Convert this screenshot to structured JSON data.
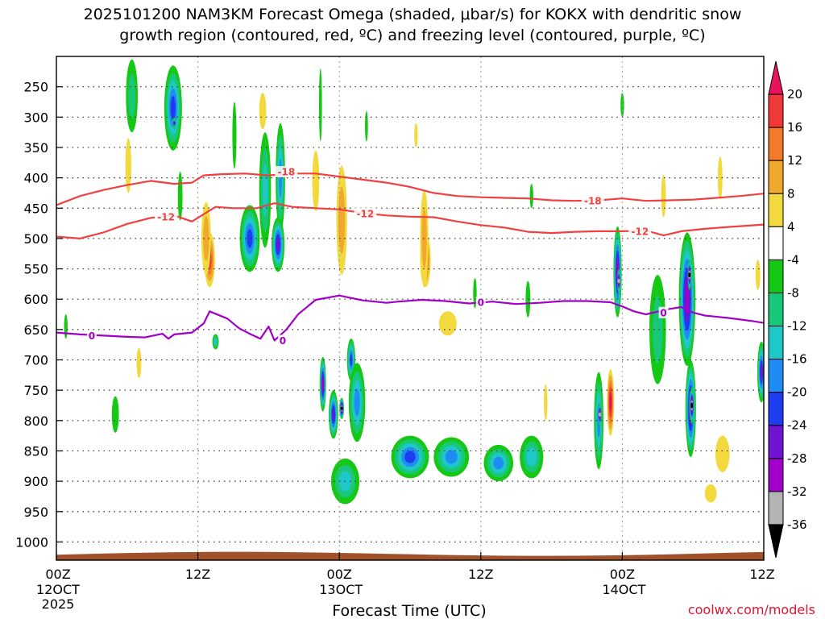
{
  "chart_data": {
    "type": "heatmap",
    "title_line1": "2025101200 NAM3KM Forecast Omega (shaded, μbar/s) for KOKX with dendritic snow",
    "title_line2": "growth region (contoured, red, ºC) and freezing level (contoured, purple, ºC)",
    "xlabel": "Forecast Time (UTC)",
    "watermark": "coolwx.com/models",
    "xlim": [
      0,
      60
    ],
    "x_ticks": [
      {
        "hour": 0,
        "label": "00Z",
        "date": "12OCT",
        "year": "2025"
      },
      {
        "hour": 12,
        "label": "12Z",
        "date": "",
        "year": ""
      },
      {
        "hour": 24,
        "label": "00Z",
        "date": "13OCT",
        "year": ""
      },
      {
        "hour": 36,
        "label": "12Z",
        "date": "",
        "year": ""
      },
      {
        "hour": 48,
        "label": "00Z",
        "date": "14OCT",
        "year": ""
      },
      {
        "hour": 60,
        "label": "12Z",
        "date": "",
        "year": ""
      }
    ],
    "y_ticks": [
      "250",
      "300",
      "350",
      "400",
      "450",
      "500",
      "550",
      "600",
      "650",
      "700",
      "750",
      "800",
      "850",
      "900",
      "950",
      "1000"
    ],
    "ylim_hPa": [
      200,
      1030
    ],
    "colorbar": {
      "labels": [
        "20",
        "16",
        "12",
        "8",
        "4",
        "-4",
        "-8",
        "-12",
        "-16",
        "-20",
        "-24",
        "-28",
        "-32",
        "-36"
      ],
      "colors": [
        "#e8135e",
        "#f03a3a",
        "#f27a2a",
        "#f0a82e",
        "#f2d93e",
        "#ffffff",
        "#14c814",
        "#18c878",
        "#1ec8c8",
        "#1e8cf0",
        "#1e3cf0",
        "#6e14d2",
        "#a000c8",
        "#b4b4b4",
        "#000000"
      ]
    },
    "contours": [
      {
        "name": "dendritic snow growth top",
        "label": "-18",
        "color": "#f04040",
        "points": [
          [
            0,
            445
          ],
          [
            2,
            430
          ],
          [
            4,
            420
          ],
          [
            6,
            412
          ],
          [
            8,
            405
          ],
          [
            10,
            410
          ],
          [
            11.5,
            408
          ],
          [
            12.5,
            396
          ],
          [
            14,
            394
          ],
          [
            16,
            393
          ],
          [
            18,
            396
          ],
          [
            20,
            393
          ],
          [
            22,
            393
          ],
          [
            24,
            398
          ],
          [
            26,
            403
          ],
          [
            28,
            408
          ],
          [
            30,
            415
          ],
          [
            32,
            425
          ],
          [
            34,
            430
          ],
          [
            36,
            432
          ],
          [
            38,
            433
          ],
          [
            40,
            434
          ],
          [
            42,
            437
          ],
          [
            44,
            438
          ],
          [
            46,
            437
          ],
          [
            48,
            434
          ],
          [
            50,
            438
          ],
          [
            52,
            437
          ],
          [
            54,
            436
          ],
          [
            56,
            433
          ],
          [
            58,
            430
          ],
          [
            60,
            426
          ]
        ]
      },
      {
        "name": "dendritic snow growth bottom",
        "label": "-12",
        "color": "#f04040",
        "points": [
          [
            0,
            497
          ],
          [
            2,
            500
          ],
          [
            4,
            490
          ],
          [
            6,
            476
          ],
          [
            8,
            466
          ],
          [
            10,
            462
          ],
          [
            11.5,
            472
          ],
          [
            12.5,
            460
          ],
          [
            13.5,
            448
          ],
          [
            15,
            450
          ],
          [
            17,
            450
          ],
          [
            18.5,
            442
          ],
          [
            20,
            448
          ],
          [
            22,
            450
          ],
          [
            24,
            452
          ],
          [
            26,
            458
          ],
          [
            28,
            462
          ],
          [
            30,
            464
          ],
          [
            32,
            465
          ],
          [
            34,
            472
          ],
          [
            36,
            478
          ],
          [
            38,
            482
          ],
          [
            40,
            489
          ],
          [
            42,
            491
          ],
          [
            44,
            489
          ],
          [
            46,
            488
          ],
          [
            48,
            488
          ],
          [
            50,
            487
          ],
          [
            51.5,
            495
          ],
          [
            53,
            488
          ],
          [
            55,
            484
          ],
          [
            57,
            481
          ],
          [
            60,
            477
          ]
        ]
      },
      {
        "name": "freezing level",
        "label": "0",
        "color": "#a000c8",
        "points": [
          [
            0,
            655
          ],
          [
            2,
            658
          ],
          [
            4,
            660
          ],
          [
            6,
            662
          ],
          [
            7.5,
            663
          ],
          [
            9,
            657
          ],
          [
            9.5,
            665
          ],
          [
            10,
            658
          ],
          [
            11.5,
            655
          ],
          [
            12.5,
            640
          ],
          [
            13,
            620
          ],
          [
            14.5,
            632
          ],
          [
            15.5,
            648
          ],
          [
            16.5,
            658
          ],
          [
            17.3,
            665
          ],
          [
            18,
            645
          ],
          [
            18.5,
            668
          ],
          [
            19.5,
            650
          ],
          [
            20.5,
            625
          ],
          [
            22,
            601
          ],
          [
            24,
            594
          ],
          [
            26,
            602
          ],
          [
            28,
            606
          ],
          [
            29,
            604
          ],
          [
            31,
            601
          ],
          [
            33,
            603
          ],
          [
            35,
            607
          ],
          [
            37,
            604
          ],
          [
            39,
            608
          ],
          [
            41,
            606
          ],
          [
            43,
            603
          ],
          [
            45,
            603
          ],
          [
            47,
            605
          ],
          [
            48,
            612
          ],
          [
            49,
            620
          ],
          [
            50,
            625
          ],
          [
            52,
            616
          ],
          [
            53,
            613
          ],
          [
            54,
            622
          ],
          [
            55,
            627
          ],
          [
            57,
            631
          ],
          [
            59,
            636
          ],
          [
            60,
            639
          ]
        ]
      }
    ],
    "contour_labels": [
      {
        "text": "-18",
        "hour": 19.5,
        "hPa": 390,
        "color": "#f04040"
      },
      {
        "text": "-12",
        "hour": 9.3,
        "hPa": 464,
        "color": "#f04040"
      },
      {
        "text": "-12",
        "hour": 26.2,
        "hPa": 459,
        "color": "#f04040"
      },
      {
        "text": "-18",
        "hour": 45.5,
        "hPa": 438,
        "color": "#f04040"
      },
      {
        "text": "-12",
        "hour": 49.5,
        "hPa": 488,
        "color": "#f04040"
      },
      {
        "text": "0",
        "hour": 3,
        "hPa": 660,
        "color": "#a000c8"
      },
      {
        "text": "0",
        "hour": 19.2,
        "hPa": 668,
        "color": "#a000c8"
      },
      {
        "text": "0",
        "hour": 36,
        "hPa": 605,
        "color": "#a000c8"
      },
      {
        "text": "0",
        "hour": 51.5,
        "hPa": 622,
        "color": "#a000c8"
      }
    ],
    "omega_cells": [
      {
        "hour": 6.4,
        "hPa": 265,
        "dt": 1.0,
        "dp": 120,
        "min": -8
      },
      {
        "hour": 9.9,
        "hPa": 285,
        "dt": 1.5,
        "dp": 140,
        "min": -20
      },
      {
        "hour": 10.0,
        "hPa": 310,
        "dt": 0.35,
        "dp": 18,
        "min": -24
      },
      {
        "hour": 15.1,
        "hPa": 330,
        "dt": 0.35,
        "dp": 110,
        "min": -6
      },
      {
        "hour": 17.7,
        "hPa": 420,
        "dt": 1.0,
        "dp": 190,
        "min": -12
      },
      {
        "hour": 19.0,
        "hPa": 400,
        "dt": 0.8,
        "dp": 180,
        "min": -16
      },
      {
        "hour": 18.8,
        "hPa": 510,
        "dt": 1.1,
        "dp": 90,
        "min": -24
      },
      {
        "hour": 16.4,
        "hPa": 500,
        "dt": 1.7,
        "dp": 110,
        "min": -20
      },
      {
        "hour": 13.5,
        "hPa": 670,
        "dt": 0.55,
        "dp": 25,
        "min": -12
      },
      {
        "hour": 22.4,
        "hPa": 280,
        "dt": 0.25,
        "dp": 120,
        "min": -6
      },
      {
        "hour": 26.3,
        "hPa": 315,
        "dt": 0.25,
        "dp": 50,
        "min": -6
      },
      {
        "hour": 22.6,
        "hPa": 740,
        "dt": 0.55,
        "dp": 90,
        "min": -28
      },
      {
        "hour": 23.5,
        "hPa": 790,
        "dt": 0.8,
        "dp": 80,
        "min": -26
      },
      {
        "hour": 24.2,
        "hPa": 780,
        "dt": 0.4,
        "dp": 35,
        "min": -36
      },
      {
        "hour": 25.0,
        "hPa": 700,
        "dt": 0.7,
        "dp": 70,
        "min": -20
      },
      {
        "hour": 25.5,
        "hPa": 770,
        "dt": 1.4,
        "dp": 130,
        "min": -16
      },
      {
        "hour": 24.5,
        "hPa": 900,
        "dt": 2.4,
        "dp": 75,
        "min": -12
      },
      {
        "hour": 30.0,
        "hPa": 860,
        "dt": 3.2,
        "dp": 70,
        "min": -20
      },
      {
        "hour": 33.5,
        "hPa": 860,
        "dt": 3.0,
        "dp": 65,
        "min": -16
      },
      {
        "hour": 37.5,
        "hPa": 870,
        "dt": 2.5,
        "dp": 60,
        "min": -16
      },
      {
        "hour": 40.3,
        "hPa": 860,
        "dt": 2.0,
        "dp": 70,
        "min": -12
      },
      {
        "hour": 40.0,
        "hPa": 600,
        "dt": 0.4,
        "dp": 60,
        "min": -6
      },
      {
        "hour": 46.0,
        "hPa": 800,
        "dt": 0.8,
        "dp": 160,
        "min": -16
      },
      {
        "hour": 46.1,
        "hPa": 790,
        "dt": 0.25,
        "dp": 40,
        "min": -32
      },
      {
        "hour": 47.6,
        "hPa": 555,
        "dt": 0.7,
        "dp": 150,
        "min": -28
      },
      {
        "hour": 47.7,
        "hPa": 570,
        "dt": 0.25,
        "dp": 40,
        "min": -32
      },
      {
        "hour": 48.0,
        "hPa": 280,
        "dt": 0.3,
        "dp": 40,
        "min": -6
      },
      {
        "hour": 51.0,
        "hPa": 650,
        "dt": 1.4,
        "dp": 180,
        "min": -8
      },
      {
        "hour": 53.5,
        "hPa": 600,
        "dt": 1.4,
        "dp": 220,
        "min": -28
      },
      {
        "hour": 53.7,
        "hPa": 560,
        "dt": 0.3,
        "dp": 50,
        "min": -36
      },
      {
        "hour": 53.8,
        "hPa": 780,
        "dt": 0.9,
        "dp": 160,
        "min": -28
      },
      {
        "hour": 53.9,
        "hPa": 775,
        "dt": 0.45,
        "dp": 60,
        "min": -36
      },
      {
        "hour": 59.8,
        "hPa": 720,
        "dt": 0.7,
        "dp": 100,
        "min": -24
      },
      {
        "hour": 10.5,
        "hPa": 430,
        "dt": 0.4,
        "dp": 80,
        "min": -4
      },
      {
        "hour": 5.0,
        "hPa": 790,
        "dt": 0.6,
        "dp": 60,
        "min": -6
      },
      {
        "hour": 0.8,
        "hPa": 645,
        "dt": 0.3,
        "dp": 40,
        "min": -6
      },
      {
        "hour": 35.5,
        "hPa": 590,
        "dt": 0.3,
        "dp": 50,
        "min": -6
      },
      {
        "hour": 40.3,
        "hPa": 430,
        "dt": 0.3,
        "dp": 40,
        "min": -6
      }
    ],
    "positive_cells": [
      {
        "hour": 6.1,
        "hPa": 380,
        "dt": 0.5,
        "dp": 90,
        "max": 6
      },
      {
        "hour": 13.0,
        "hPa": 535,
        "dt": 0.9,
        "dp": 90,
        "max": 16
      },
      {
        "hour": 12.7,
        "hPa": 500,
        "dt": 0.8,
        "dp": 120,
        "max": 8
      },
      {
        "hour": 17.5,
        "hPa": 290,
        "dt": 0.6,
        "dp": 60,
        "max": 6
      },
      {
        "hour": 24.2,
        "hPa": 470,
        "dt": 0.9,
        "dp": 180,
        "max": 8
      },
      {
        "hour": 31.3,
        "hPa": 535,
        "dt": 0.9,
        "dp": 90,
        "max": 16
      },
      {
        "hour": 31.2,
        "hPa": 500,
        "dt": 0.7,
        "dp": 160,
        "max": 8
      },
      {
        "hour": 30.5,
        "hPa": 330,
        "dt": 0.3,
        "dp": 40,
        "max": 6
      },
      {
        "hour": 33.2,
        "hPa": 640,
        "dt": 1.5,
        "dp": 40,
        "max": 6
      },
      {
        "hour": 47.0,
        "hPa": 770,
        "dt": 0.6,
        "dp": 110,
        "max": 20
      },
      {
        "hour": 51.5,
        "hPa": 430,
        "dt": 0.4,
        "dp": 70,
        "max": 6
      },
      {
        "hour": 56.3,
        "hPa": 400,
        "dt": 0.4,
        "dp": 70,
        "max": 6
      },
      {
        "hour": 56.5,
        "hPa": 855,
        "dt": 1.2,
        "dp": 60,
        "max": 6
      },
      {
        "hour": 59.5,
        "hPa": 560,
        "dt": 0.4,
        "dp": 50,
        "max": 6
      },
      {
        "hour": 7.0,
        "hPa": 705,
        "dt": 0.4,
        "dp": 50,
        "max": 6
      },
      {
        "hour": 55.5,
        "hPa": 920,
        "dt": 1.0,
        "dp": 30,
        "max": 6
      },
      {
        "hour": 22.0,
        "hPa": 405,
        "dt": 0.6,
        "dp": 100,
        "max": 6
      },
      {
        "hour": 41.5,
        "hPa": 770,
        "dt": 0.3,
        "dp": 60,
        "max": 6
      }
    ]
  }
}
